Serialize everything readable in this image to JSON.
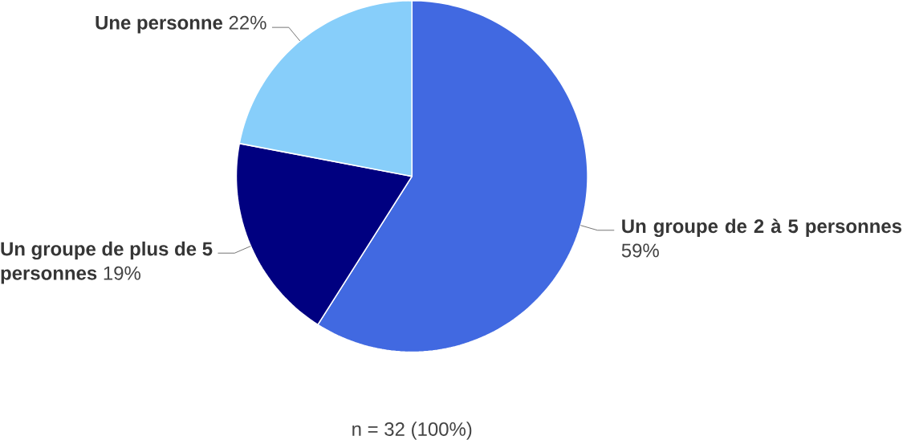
{
  "chart_data": {
    "type": "pie",
    "categories": [
      "Un groupe de 2 à 5 personnes",
      "Un groupe de plus de 5 personnes",
      "Une personne"
    ],
    "values": [
      59,
      19,
      22
    ],
    "value_labels": [
      "59%",
      "19%",
      "22%"
    ],
    "colors": [
      "#4169e1",
      "#000080",
      "#87cefa"
    ],
    "annotations": [
      "n = 32 (100%)"
    ]
  }
}
